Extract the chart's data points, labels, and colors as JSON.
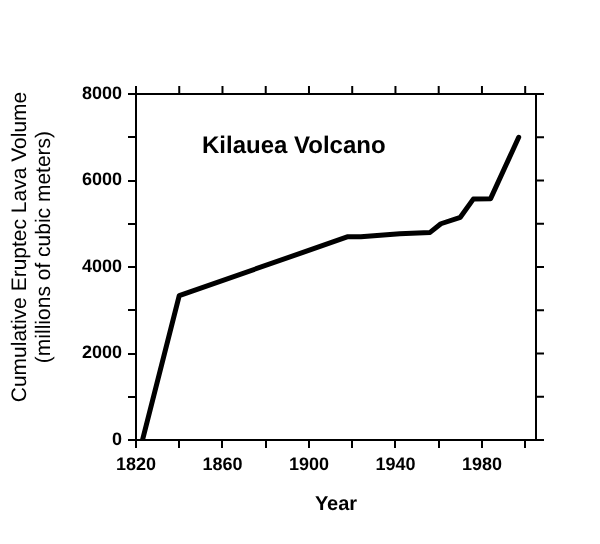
{
  "chart_data": {
    "type": "line",
    "title": "Kilauea Volcano",
    "xlabel": "Year",
    "ylabel": "Cumulative Eruptec Lava Volume\n(millions of cubic meters)",
    "x": [
      1823,
      1840,
      1918,
      1924,
      1942,
      1956,
      1961,
      1970,
      1976,
      1984,
      1997
    ],
    "series": [
      {
        "color": "#000000",
        "values": [
          0,
          3340,
          4700,
          4700,
          4770,
          4800,
          5000,
          5150,
          5570,
          5580,
          7000
        ]
      }
    ],
    "xlim": [
      1820,
      2005
    ],
    "xticks": [
      1820,
      {
        "value": 1840,
        "label": null
      },
      1860,
      {
        "value": 1880,
        "label": null
      },
      1900,
      {
        "value": 1920,
        "label": null
      },
      1940,
      {
        "value": 1960,
        "label": null
      },
      1980,
      {
        "value": 2000,
        "label": null
      }
    ],
    "ylim": [
      0,
      8000
    ],
    "yticks": [
      0,
      {
        "value": 1000,
        "label": null
      },
      2000,
      {
        "value": 3000,
        "label": null
      },
      4000,
      {
        "value": 5000,
        "label": null
      },
      6000,
      {
        "value": 7000,
        "label": null
      },
      8000
    ],
    "grid": false,
    "legend": false,
    "marker": "none",
    "line_style": "solid"
  }
}
